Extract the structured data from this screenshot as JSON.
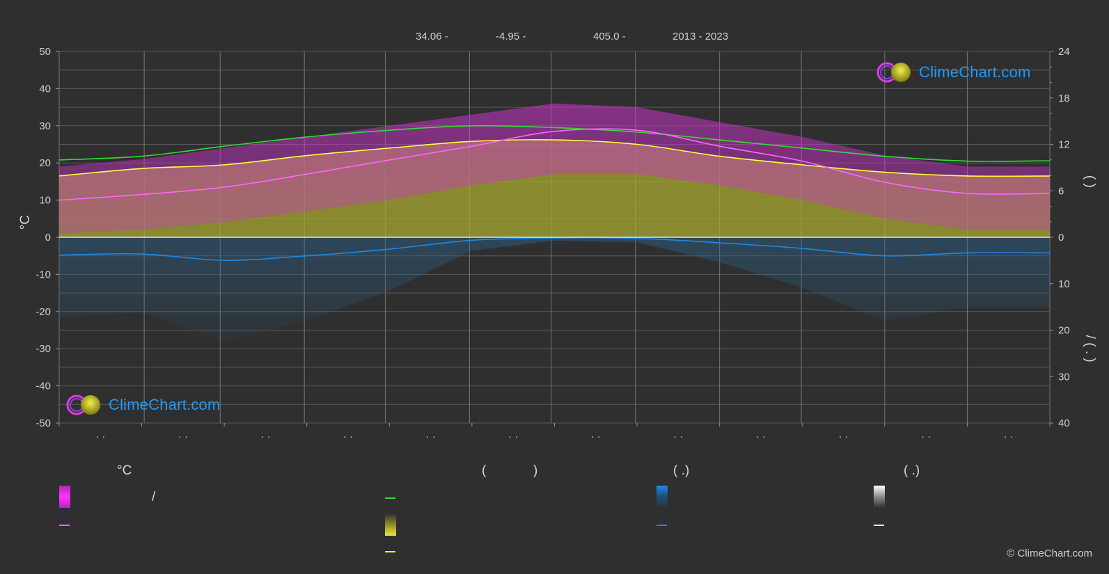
{
  "header": {
    "lat": "34.06 -",
    "lon": "-4.95 -",
    "elev": "405.0 -",
    "years": "2013 - 2023"
  },
  "logo": {
    "text": "ClimeChart.com"
  },
  "copyright": "© ClimeChart.com",
  "legend": {
    "col1_title": "°C",
    "col1_slash": "/",
    "col2_title_open": "(",
    "col2_title_close": ")",
    "col3_title": "(   .)",
    "col4_title": "(   .)"
  },
  "colors": {
    "background": "#2f2f2f",
    "temp_band": "#cc33cc",
    "temp_mean_line": "#ff66ff",
    "daylight_line": "#33dd33",
    "sunshine_band": "#a8a832",
    "sunshine_line": "#ffff44",
    "precip_band": "#2a6a9a",
    "precip_line": "#1e88e5",
    "snow_line": "#ffffff"
  },
  "chart_data": {
    "type": "area",
    "x_label": "",
    "y_left_label": "°C",
    "y_left_ticks": [
      50,
      40,
      30,
      20,
      10,
      0,
      -10,
      -20,
      -30,
      -40,
      -50
    ],
    "y_right_top_ticks": [
      24,
      18,
      12,
      6,
      0
    ],
    "y_right_bottom_ticks": [
      10,
      20,
      30,
      40
    ],
    "y_right_label_top": "(   )",
    "y_right_label_bottom": "/   (  .  )",
    "ylim": [
      -50,
      50
    ],
    "x_tick_labels": [
      "· ·",
      "· ·",
      "· ·",
      "· ·",
      "· ·",
      "· ·",
      "· ·",
      "· ·",
      "· ·",
      "· ·",
      "· ·",
      "· ·"
    ],
    "grid": true,
    "months_x": [
      0,
      1,
      2,
      3,
      4,
      5,
      6,
      7,
      8,
      9,
      10,
      11,
      12
    ],
    "series": [
      {
        "key": "daylight",
        "x": [
          0,
          1,
          2,
          3,
          4,
          5,
          6,
          7,
          8,
          9,
          10,
          11,
          12
        ],
        "values": [
          20.8,
          21.8,
          24.5,
          27.0,
          28.8,
          30.0,
          29.5,
          28.3,
          26.2,
          24.0,
          21.8,
          20.5,
          20.6
        ]
      },
      {
        "key": "sunshine_mean",
        "x": [
          0,
          1,
          2,
          3,
          4,
          5,
          6,
          7,
          8,
          9,
          10,
          11,
          12
        ],
        "values": [
          16.5,
          18.5,
          19.5,
          22.0,
          24.0,
          25.8,
          26.2,
          25.0,
          21.8,
          19.5,
          17.5,
          16.5,
          16.5
        ]
      },
      {
        "key": "temp_mean",
        "x": [
          0,
          1,
          2,
          3,
          4,
          5,
          6,
          7,
          8,
          9,
          10,
          11,
          12
        ],
        "values": [
          10.0,
          11.5,
          13.5,
          17.0,
          20.8,
          24.5,
          28.5,
          28.8,
          24.5,
          20.5,
          14.8,
          11.8,
          11.8
        ]
      },
      {
        "key": "precip_mean",
        "x": [
          0,
          1,
          2,
          3,
          4,
          5,
          6,
          7,
          8,
          9,
          10,
          11,
          12
        ],
        "values": [
          -4.8,
          -4.5,
          -6.2,
          -5.0,
          -3.2,
          -0.8,
          -0.2,
          -0.3,
          -1.5,
          -3.0,
          -5.0,
          -4.2,
          -4.2
        ]
      }
    ],
    "temp_band_top": [
      19,
      21,
      24,
      27,
      30,
      33,
      36,
      35,
      31,
      27,
      22,
      19,
      19
    ],
    "temp_band_bottom": [
      1,
      2,
      4,
      7,
      10,
      14,
      17,
      17,
      14,
      10,
      5,
      2,
      2
    ],
    "sunshine_band_top": [
      16.5,
      18.5,
      19.5,
      22.0,
      24.0,
      25.8,
      26.2,
      25.0,
      21.8,
      19.5,
      17.5,
      16.5,
      16.5
    ]
  }
}
